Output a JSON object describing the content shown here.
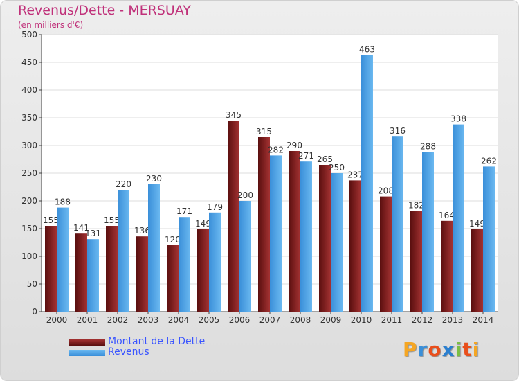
{
  "chart_data": {
    "type": "bar",
    "title": "Revenus/Dette - MERSUAY",
    "subtitle": "(en milliers d'€)",
    "categories": [
      "2000",
      "2001",
      "2002",
      "2003",
      "2004",
      "2005",
      "2006",
      "2007",
      "2008",
      "2009",
      "2010",
      "2011",
      "2012",
      "2013",
      "2014"
    ],
    "series": [
      {
        "name": "Montant de la Dette",
        "values": [
          155,
          141,
          155,
          136,
          120,
          149,
          345,
          315,
          290,
          265,
          237,
          208,
          182,
          164,
          149
        ],
        "color": "#8b1a1a"
      },
      {
        "name": "Revenus",
        "values": [
          188,
          131,
          220,
          230,
          171,
          179,
          200,
          282,
          271,
          250,
          463,
          316,
          288,
          338,
          262
        ],
        "color": "#4aa3e6"
      }
    ],
    "ylim": [
      0,
      500
    ],
    "yticks": [
      0,
      50,
      100,
      150,
      200,
      250,
      300,
      350,
      400,
      450,
      500
    ],
    "grid": true,
    "legend_position": "bottom-left"
  },
  "logo": {
    "letters": [
      {
        "ch": "P",
        "color": "#f5a623"
      },
      {
        "ch": "r",
        "color": "#3a8fd9"
      },
      {
        "ch": "o",
        "color": "#e94e1b"
      },
      {
        "ch": "x",
        "color": "#2a7fd0"
      },
      {
        "ch": "i",
        "color": "#7bc043"
      },
      {
        "ch": "t",
        "color": "#e94e1b"
      },
      {
        "ch": "i",
        "color": "#f5a623"
      }
    ]
  }
}
